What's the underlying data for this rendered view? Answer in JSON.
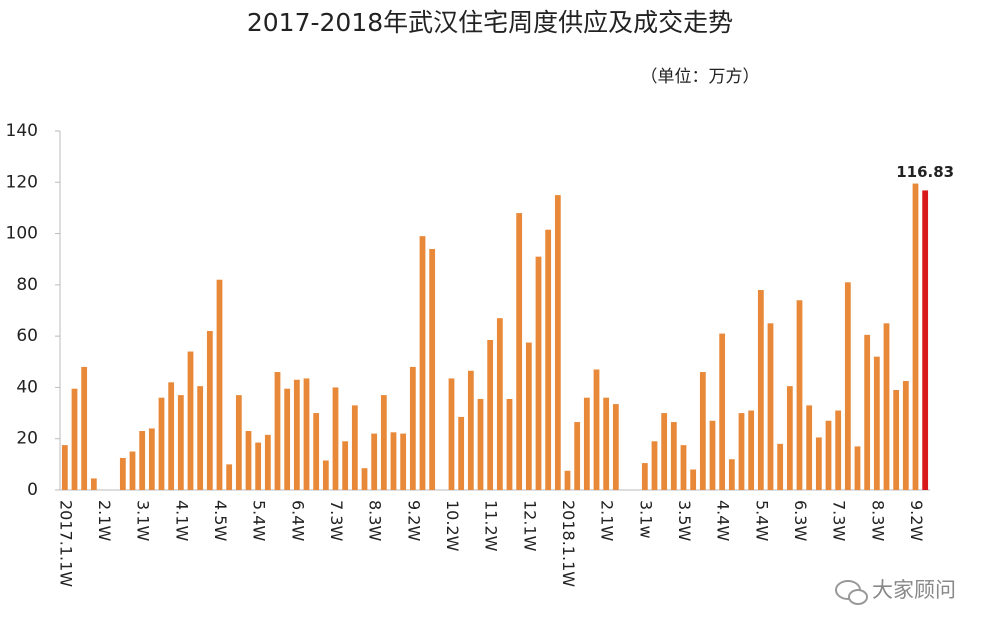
{
  "chart_data": {
    "type": "bar",
    "title": "2017-2018年武汉住宅周度供应及成交走势",
    "subtitle": "（单位：万方）",
    "watermark": "大家顾问",
    "categories": [
      "2017.1.1W",
      null,
      null,
      null,
      "2.1W",
      null,
      null,
      null,
      "3.1W",
      null,
      null,
      null,
      "4.1W",
      null,
      null,
      null,
      "4.5W",
      null,
      null,
      null,
      "5.4W",
      null,
      null,
      null,
      "6.4W",
      null,
      null,
      null,
      "7.3W",
      null,
      null,
      null,
      "8.3W",
      null,
      null,
      null,
      "9.2W",
      null,
      null,
      null,
      "10.2W",
      null,
      null,
      null,
      "11.2W",
      null,
      null,
      null,
      "12.1W",
      null,
      null,
      null,
      "2018.1.1W",
      null,
      null,
      null,
      "2.1W",
      null,
      null,
      null,
      "3.1w",
      null,
      null,
      null,
      "3.5W",
      null,
      null,
      null,
      "4.4W",
      null,
      null,
      null,
      "5.4W",
      null,
      null,
      null,
      "6.3W",
      null,
      null,
      null,
      "7.3W",
      null,
      null,
      null,
      "8.3W",
      null,
      null,
      null,
      "9.2W",
      null
    ],
    "values": [
      17.5,
      39.5,
      48,
      4.5,
      0,
      0,
      12.5,
      15,
      23,
      24,
      36,
      42,
      37,
      54,
      40.5,
      62,
      82,
      10,
      37,
      23,
      18.5,
      21.5,
      46,
      39.5,
      43,
      43.5,
      30,
      11.5,
      40,
      19,
      33,
      8.5,
      22,
      37,
      22.5,
      22,
      48,
      99,
      94,
      0,
      43.5,
      28.5,
      46.5,
      35.5,
      58.5,
      67,
      35.5,
      108,
      57.5,
      91,
      101.5,
      115,
      7.5,
      26.5,
      36,
      47,
      36,
      33.5,
      0,
      0,
      10.5,
      19,
      30,
      26.5,
      17.5,
      8,
      46,
      27,
      61,
      12,
      30,
      31,
      78,
      65,
      18,
      40.5,
      74,
      33,
      20.5,
      27,
      31,
      81,
      17,
      60.5,
      52,
      65,
      39,
      42.5,
      119.5,
      116.83
    ],
    "value_labels": [
      null,
      null,
      null,
      null,
      null,
      null,
      null,
      null,
      null,
      null,
      null,
      null,
      null,
      null,
      null,
      null,
      null,
      null,
      null,
      null,
      null,
      null,
      null,
      null,
      null,
      null,
      null,
      null,
      null,
      null,
      null,
      null,
      null,
      null,
      null,
      null,
      null,
      null,
      null,
      null,
      null,
      null,
      null,
      null,
      null,
      null,
      null,
      null,
      null,
      null,
      null,
      null,
      null,
      null,
      null,
      null,
      null,
      null,
      null,
      null,
      null,
      null,
      null,
      null,
      null,
      null,
      null,
      null,
      null,
      null,
      null,
      null,
      null,
      null,
      null,
      null,
      null,
      null,
      null,
      null,
      null,
      null,
      null,
      null,
      null,
      null,
      null,
      null,
      null,
      "116.83"
    ],
    "color": "#e8893a",
    "highlight_color": "#d7191c",
    "ylim": [
      0,
      140
    ],
    "yticks": [
      0,
      20,
      40,
      60,
      80,
      100,
      120,
      140
    ]
  }
}
